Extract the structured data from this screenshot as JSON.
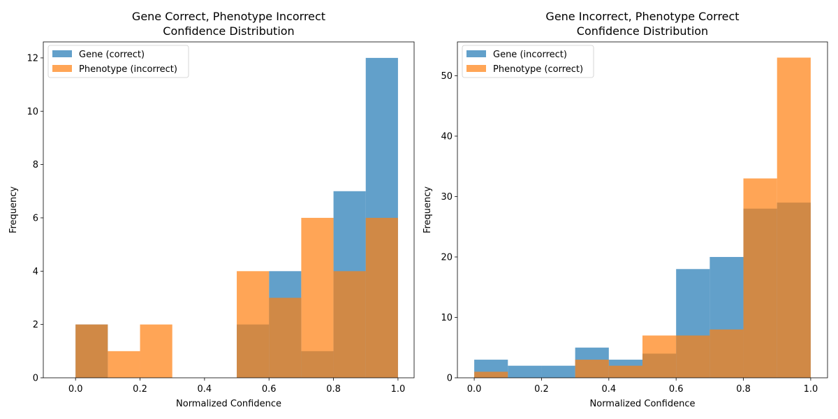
{
  "colors": {
    "gene": "#1f77b4",
    "phenotype": "#ff7f0e"
  },
  "chart_data": [
    {
      "type": "bar",
      "subtype": "overlapping-histogram",
      "title": [
        "Gene Correct, Phenotype Incorrect",
        "Confidence Distribution"
      ],
      "xlabel": "Normalized Confidence",
      "ylabel": "Frequency",
      "xlim": [
        -0.1,
        1.05
      ],
      "ylim": [
        0,
        12.6
      ],
      "xticks": [
        0.0,
        0.2,
        0.4,
        0.6,
        0.8,
        1.0
      ],
      "xtick_labels": [
        "0.0",
        "0.2",
        "0.4",
        "0.6",
        "0.8",
        "1.0"
      ],
      "yticks": [
        0,
        2,
        4,
        6,
        8,
        10,
        12
      ],
      "ytick_labels": [
        "0",
        "2",
        "4",
        "6",
        "8",
        "10",
        "12"
      ],
      "bin_edges": [
        0.0,
        0.1,
        0.2,
        0.3,
        0.4,
        0.5,
        0.6,
        0.7,
        0.8,
        0.9,
        1.0
      ],
      "legend_position": "top-left",
      "series": [
        {
          "name": "Gene (correct)",
          "color_key": "gene",
          "values": [
            2,
            0,
            0,
            0,
            0,
            2,
            4,
            1,
            7,
            12
          ]
        },
        {
          "name": "Phenotype (incorrect)",
          "color_key": "phenotype",
          "values": [
            2,
            1,
            2,
            0,
            0,
            4,
            3,
            6,
            4,
            6
          ]
        }
      ]
    },
    {
      "type": "bar",
      "subtype": "overlapping-histogram",
      "title": [
        "Gene Incorrect, Phenotype Correct",
        "Confidence Distribution"
      ],
      "xlabel": "Normalized Confidence",
      "ylabel": "Frequency",
      "xlim": [
        -0.05,
        1.05
      ],
      "ylim": [
        0,
        55.6
      ],
      "xticks": [
        0.0,
        0.2,
        0.4,
        0.6,
        0.8,
        1.0
      ],
      "xtick_labels": [
        "0.0",
        "0.2",
        "0.4",
        "0.6",
        "0.8",
        "1.0"
      ],
      "yticks": [
        0,
        10,
        20,
        30,
        40,
        50
      ],
      "ytick_labels": [
        "0",
        "10",
        "20",
        "30",
        "40",
        "50"
      ],
      "bin_edges": [
        0.0,
        0.1,
        0.2,
        0.3,
        0.4,
        0.5,
        0.6,
        0.7,
        0.8,
        0.9,
        1.0
      ],
      "legend_position": "top-left",
      "series": [
        {
          "name": "Gene (incorrect)",
          "color_key": "gene",
          "values": [
            3,
            2,
            2,
            5,
            3,
            4,
            18,
            20,
            28,
            29
          ]
        },
        {
          "name": "Phenotype (correct)",
          "color_key": "phenotype",
          "values": [
            1,
            0,
            0,
            3,
            2,
            7,
            7,
            8,
            33,
            53
          ]
        }
      ]
    }
  ]
}
